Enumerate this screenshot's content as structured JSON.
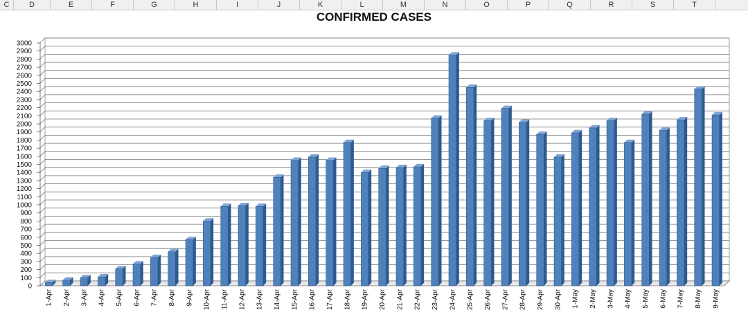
{
  "spreadsheet": {
    "columns": [
      "C",
      "D",
      "E",
      "F",
      "G",
      "H",
      "I",
      "J",
      "K",
      "L",
      "M",
      "N",
      "O",
      "P",
      "Q",
      "R",
      "S",
      "T"
    ]
  },
  "chart_data": {
    "type": "bar",
    "title": "CONFIRMED CASES",
    "xlabel": "",
    "ylabel": "",
    "ylim": [
      0,
      3000
    ],
    "ytick_step": 100,
    "grid": true,
    "legend": "none",
    "bar_color": "#4F81BD",
    "categories": [
      "1-Apr",
      "2-Apr",
      "3-Apr",
      "4-Apr",
      "5-Apr",
      "6-Apr",
      "7-Apr",
      "8-Apr",
      "9-Apr",
      "10-Apr",
      "11-Apr",
      "12-Apr",
      "13-Apr",
      "14-Apr",
      "15-Apr",
      "16-Apr",
      "17-Apr",
      "18-Apr",
      "19-Apr",
      "20-Apr",
      "21-Apr",
      "22-Apr",
      "23-Apr",
      "24-Apr",
      "25-Apr",
      "26-Apr",
      "27-Apr",
      "28-Apr",
      "29-Apr",
      "30-Apr",
      "1-May",
      "2-May",
      "3-May",
      "4-May",
      "5-May",
      "6-May",
      "7-May",
      "8-May",
      "9-May"
    ],
    "values": [
      40,
      70,
      100,
      110,
      210,
      270,
      350,
      420,
      570,
      800,
      980,
      990,
      980,
      1340,
      1550,
      1590,
      1550,
      1770,
      1400,
      1450,
      1460,
      1470,
      2070,
      2850,
      2450,
      2040,
      2190,
      2020,
      1870,
      1590,
      1890,
      1950,
      2040,
      1770,
      2120,
      1920,
      2050,
      2430,
      2110
    ]
  }
}
